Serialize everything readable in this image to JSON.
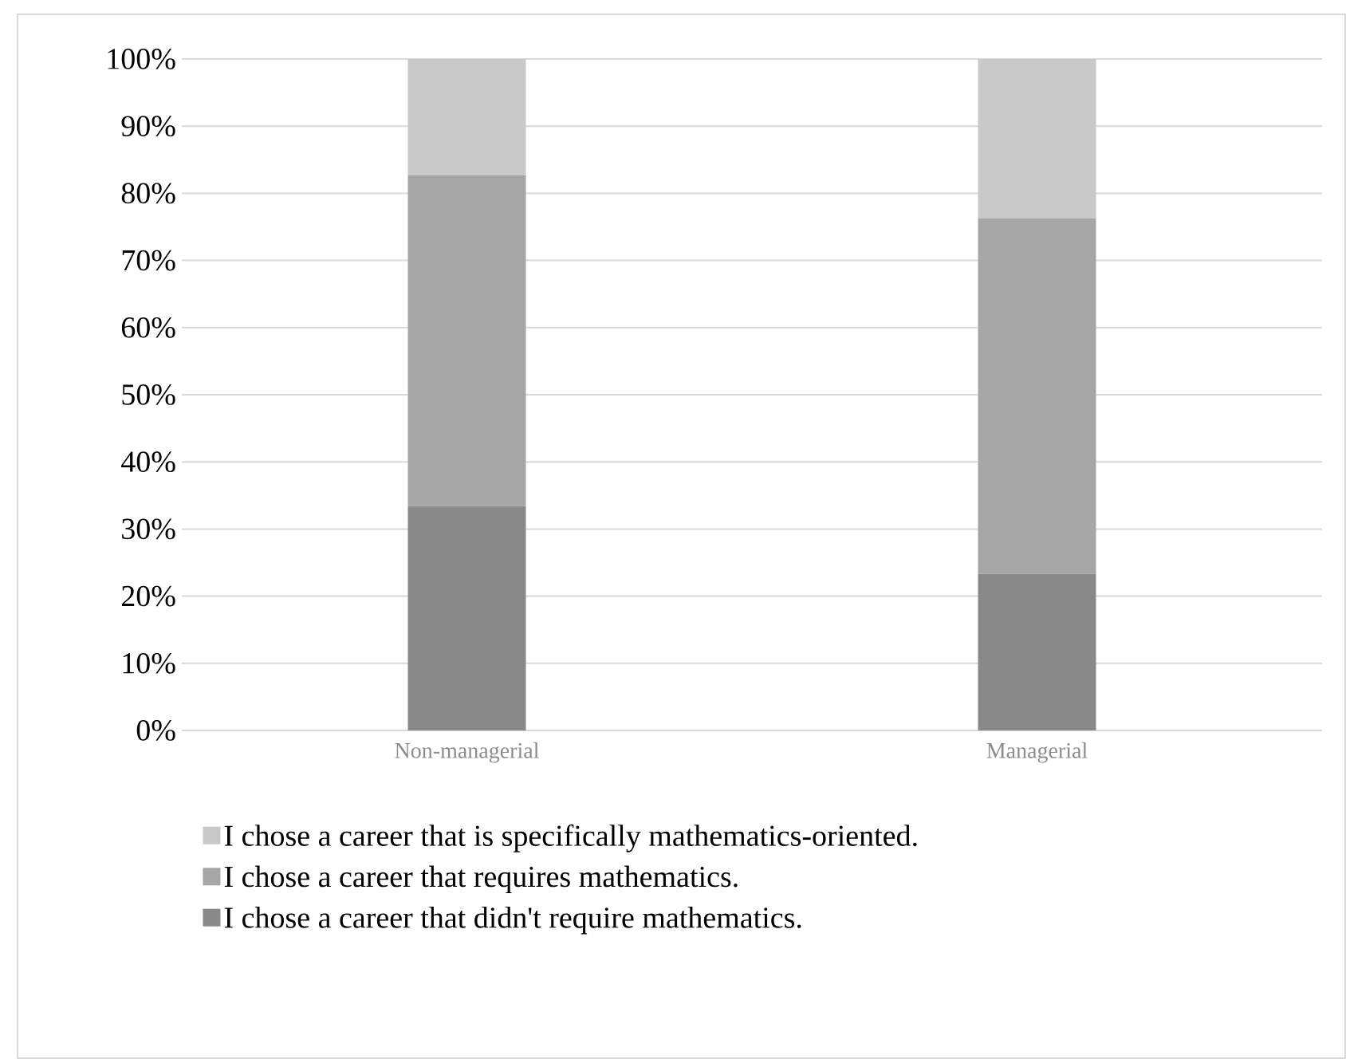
{
  "chart_data": {
    "type": "bar",
    "stacked": true,
    "categories": [
      "Non-managerial",
      "Managerial"
    ],
    "series": [
      {
        "name": "I chose a career that didn't require mathematics.",
        "color": "#898989",
        "values": [
          33.4,
          23.3
        ]
      },
      {
        "name": "I chose a career that requires mathematics.",
        "color": "#a6a6a6",
        "values": [
          49.3,
          53.0
        ]
      },
      {
        "name": "I chose a career that is specifically mathematics-oriented.",
        "color": "#c9c9c9",
        "values": [
          17.3,
          23.7
        ]
      }
    ],
    "ylim": [
      0,
      100
    ],
    "yticks": [
      {
        "value": 0,
        "label": "0%"
      },
      {
        "value": 10,
        "label": "10%"
      },
      {
        "value": 20,
        "label": "20%"
      },
      {
        "value": 30,
        "label": "30%"
      },
      {
        "value": 40,
        "label": "40%"
      },
      {
        "value": 50,
        "label": "50%"
      },
      {
        "value": 60,
        "label": "60%"
      },
      {
        "value": 70,
        "label": "70%"
      },
      {
        "value": 80,
        "label": "80%"
      },
      {
        "value": 90,
        "label": "90%"
      },
      {
        "value": 100,
        "label": "100%"
      }
    ],
    "grid": "y",
    "legend": "bottom"
  }
}
